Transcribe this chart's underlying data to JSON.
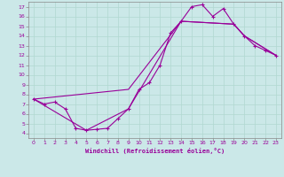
{
  "xlabel": "Windchill (Refroidissement éolien,°C)",
  "bg_color": "#cbe8e8",
  "line_color": "#990099",
  "xlim": [
    -0.5,
    23.5
  ],
  "ylim": [
    3.5,
    17.5
  ],
  "xticks": [
    0,
    1,
    2,
    3,
    4,
    5,
    6,
    7,
    8,
    9,
    10,
    11,
    12,
    13,
    14,
    15,
    16,
    17,
    18,
    19,
    20,
    21,
    22,
    23
  ],
  "yticks": [
    4,
    5,
    6,
    7,
    8,
    9,
    10,
    11,
    12,
    13,
    14,
    15,
    16,
    17
  ],
  "line1_x": [
    0,
    1,
    2,
    3,
    4,
    5,
    6,
    7,
    8,
    9,
    10,
    11,
    12,
    13,
    14,
    15,
    16,
    17,
    18,
    19,
    20,
    21,
    22,
    23
  ],
  "line1_y": [
    7.5,
    7.0,
    7.2,
    6.5,
    4.5,
    4.3,
    4.4,
    4.5,
    5.5,
    6.5,
    8.5,
    9.2,
    11.0,
    14.3,
    15.5,
    17.0,
    17.2,
    16.0,
    16.8,
    15.2,
    14.0,
    13.0,
    12.5,
    12.0
  ],
  "line2_x": [
    0,
    19,
    23
  ],
  "line2_y": [
    7.5,
    15.2,
    12.0
  ],
  "line3_x": [
    0,
    19,
    23
  ],
  "line3_y": [
    7.5,
    15.2,
    12.0
  ],
  "line_upper_x": [
    0,
    9,
    14,
    19,
    20,
    23
  ],
  "line_upper_y": [
    7.5,
    8.5,
    15.5,
    15.2,
    14.0,
    12.0
  ],
  "line_lower_x": [
    0,
    5,
    9,
    14,
    19,
    20,
    23
  ],
  "line_lower_y": [
    7.5,
    4.3,
    6.5,
    15.5,
    15.2,
    14.0,
    12.0
  ]
}
